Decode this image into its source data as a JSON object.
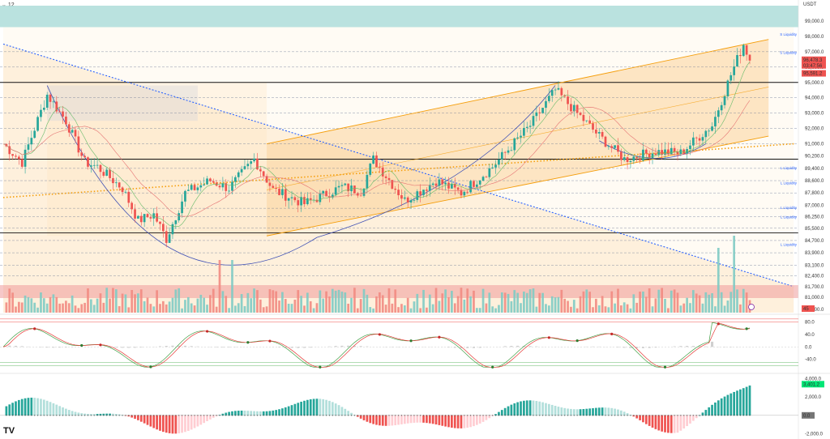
{
  "header": {
    "interval": "12",
    "currency": "USDT"
  },
  "colors": {
    "up": "#26a69a",
    "down": "#ef5350",
    "channel_fill": "#fde3c0",
    "blue": "#2962ff",
    "orange": "#f59e0b",
    "band": "#b2dfdb"
  },
  "chart_data": [
    {
      "type": "candlestick",
      "name": "price",
      "ylim": [
        80000,
        100000
      ],
      "y_ticks": [
        "99,000.0",
        "98,000.0",
        "97,000.0",
        "96,000.0",
        "95,000.0",
        "94,000.0",
        "93,000.0",
        "92,000.0",
        "91,000.0",
        "90,200.0",
        "89,400.0",
        "88,600.0",
        "87,800.0",
        "87,000.0",
        "86,250.0",
        "85,500.0",
        "84,700.0",
        "83,900.0",
        "83,100.0",
        "82,400.0",
        "81,700.0",
        "81,000.0",
        "80,200.0"
      ],
      "price_labels": [
        {
          "text": "96,478.3",
          "value": 96478.3,
          "color": "#ef5350"
        },
        {
          "text": "03:47:56",
          "value": 96110,
          "color": "#ef5350"
        },
        {
          "text": "95,591.2",
          "value": 95591.2,
          "color": "#ef5350"
        }
      ],
      "horizontal_levels": [
        95000,
        90000,
        85200
      ],
      "dashed_levels": [
        97000,
        96000,
        94000,
        93000,
        92000,
        91000,
        89400,
        88600,
        87800,
        86800,
        86250,
        85500,
        84700,
        83900,
        83100,
        82400
      ],
      "liquidity_labels": [
        {
          "text": "S Liquidity",
          "value": 98000
        },
        {
          "text": "S Liquidity",
          "value": 96800
        },
        {
          "text": "L Liquidity",
          "value": 89300
        },
        {
          "text": "L Liquidity",
          "value": 88300
        },
        {
          "text": "L Liquidity",
          "value": 86700
        },
        {
          "text": "L Liquidity",
          "value": 86100
        },
        {
          "text": "L Liquidity",
          "value": 84300
        }
      ],
      "key_points": [
        {
          "t": 0,
          "v": 91000
        },
        {
          "t": 6,
          "v": 89800
        },
        {
          "t": 14,
          "v": 94200
        },
        {
          "t": 20,
          "v": 92500
        },
        {
          "t": 26,
          "v": 89800
        },
        {
          "t": 30,
          "v": 89500
        },
        {
          "t": 38,
          "v": 88100
        },
        {
          "t": 43,
          "v": 86000
        },
        {
          "t": 48,
          "v": 86400
        },
        {
          "t": 52,
          "v": 84800
        },
        {
          "t": 58,
          "v": 87800
        },
        {
          "t": 66,
          "v": 88600
        },
        {
          "t": 72,
          "v": 88100
        },
        {
          "t": 80,
          "v": 90000
        },
        {
          "t": 86,
          "v": 88000
        },
        {
          "t": 96,
          "v": 87100
        },
        {
          "t": 108,
          "v": 88200
        },
        {
          "t": 114,
          "v": 87900
        },
        {
          "t": 118,
          "v": 90000
        },
        {
          "t": 128,
          "v": 87300
        },
        {
          "t": 138,
          "v": 88600
        },
        {
          "t": 146,
          "v": 87800
        },
        {
          "t": 156,
          "v": 89500
        },
        {
          "t": 168,
          "v": 92200
        },
        {
          "t": 176,
          "v": 94500
        },
        {
          "t": 182,
          "v": 93200
        },
        {
          "t": 190,
          "v": 91500
        },
        {
          "t": 198,
          "v": 90000
        },
        {
          "t": 208,
          "v": 90500
        },
        {
          "t": 216,
          "v": 90400
        },
        {
          "t": 222,
          "v": 91500
        },
        {
          "t": 226,
          "v": 92200
        },
        {
          "t": 232,
          "v": 95500
        },
        {
          "t": 236,
          "v": 97500
        },
        {
          "t": 238,
          "v": 96500
        }
      ],
      "trend_lines": [
        {
          "label": "upper-channel",
          "from": {
            "t": 84,
            "v": 91000
          },
          "to": {
            "t": 244,
            "v": 97800
          }
        },
        {
          "label": "lower-channel",
          "from": {
            "t": 84,
            "v": 85000
          },
          "to": {
            "t": 244,
            "v": 91500
          }
        },
        {
          "label": "descending-line",
          "from": {
            "t": 0,
            "v": 97500
          },
          "to": {
            "t": 252,
            "v": 81700
          }
        },
        {
          "label": "rising-dotted",
          "from": {
            "t": 0,
            "v": 87500
          },
          "to": {
            "t": 252,
            "v": 91000
          }
        }
      ]
    },
    {
      "type": "bar",
      "name": "volume",
      "special_marker": "45"
    },
    {
      "type": "line",
      "name": "stoch-rsi",
      "y_ticks": [
        "80.0",
        "40.0",
        "0.0",
        "-40.0"
      ],
      "ylim": [
        -80,
        100
      ]
    },
    {
      "type": "bar",
      "name": "macd-histogram",
      "y_ticks": [
        "4,000.0",
        "2,000.0",
        "0.0",
        "-2,000.0"
      ],
      "ylim": [
        -2400,
        4400
      ],
      "last_value_label": "3,401.2"
    }
  ]
}
